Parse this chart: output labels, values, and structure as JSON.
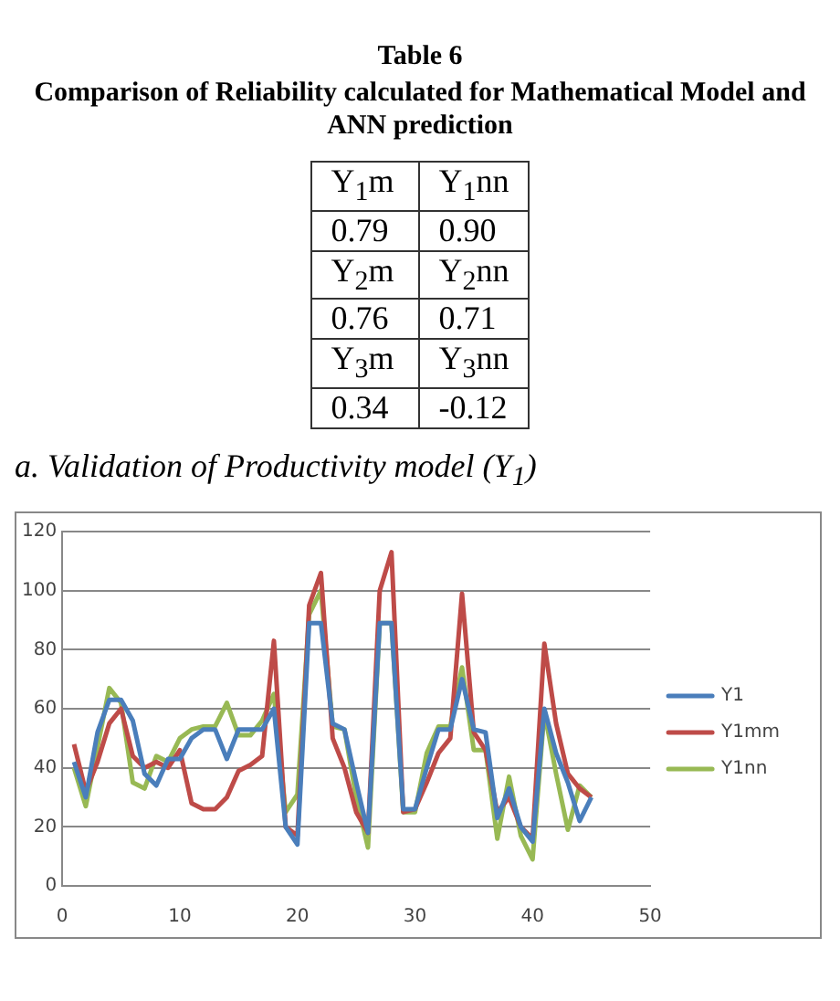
{
  "chart_data": {
    "type": "line",
    "title": "a. Validation of Productivity model (Y$_{1}$)",
    "annotations": [
      "Table 6",
      "Comparison of Reliability calculated for Mathematical Model and ANN prediction",
      "Y$_{1}$m",
      "Y$_{1}$nn",
      "0.79",
      "0.90",
      "Y$_{2}$m",
      "Y$_{2}$nn",
      "0.76",
      "0.71",
      "Y$_{3}$m",
      "Y$_{3}$nn",
      "0.34",
      "-0.12"
    ],
    "x": [
      1,
      2,
      3,
      4,
      5,
      6,
      7,
      8,
      9,
      10,
      11,
      12,
      13,
      14,
      15,
      16,
      17,
      18,
      19,
      20,
      21,
      22,
      23,
      24,
      25,
      26,
      27,
      28,
      29,
      30,
      31,
      32,
      33,
      34,
      35,
      36,
      37,
      38,
      39,
      40,
      41,
      42,
      43,
      44,
      45
    ],
    "series": [
      {
        "name": "Y1",
        "color": "#4a7ebb",
        "values": [
          42,
          30,
          52,
          63,
          63,
          56,
          38,
          34,
          43,
          43,
          50,
          53,
          53,
          43,
          53,
          53,
          53,
          60,
          20,
          14,
          89,
          89,
          55,
          53,
          35,
          18,
          89,
          89,
          26,
          26,
          40,
          53,
          53,
          70,
          53,
          52,
          23,
          33,
          20,
          15,
          60,
          45,
          35,
          22,
          30
        ]
      },
      {
        "name": "Y1mm",
        "color": "#be4b48",
        "values": [
          48,
          32,
          42,
          55,
          60,
          44,
          40,
          42,
          40,
          46,
          28,
          26,
          26,
          30,
          39,
          41,
          44,
          83,
          20,
          17,
          95,
          106,
          50,
          40,
          25,
          18,
          100,
          113,
          25,
          26,
          35,
          45,
          50,
          99,
          52,
          46,
          25,
          30,
          20,
          16,
          82,
          55,
          38,
          33,
          30
        ]
      },
      {
        "name": "Y1nn",
        "color": "#98b954",
        "values": [
          40,
          27,
          47,
          67,
          62,
          35,
          33,
          44,
          42,
          50,
          53,
          54,
          54,
          62,
          51,
          51,
          56,
          65,
          25,
          31,
          92,
          100,
          54,
          53,
          30,
          13,
          89,
          89,
          25,
          25,
          45,
          54,
          54,
          74,
          46,
          46,
          16,
          37,
          17,
          9,
          59,
          38,
          19,
          34,
          30
        ]
      }
    ],
    "xlim": [
      0,
      50
    ],
    "xticks": [
      0,
      10,
      20,
      30,
      40,
      50
    ],
    "ylim": [
      0,
      120
    ],
    "yticks": [
      0,
      20,
      40,
      60,
      80,
      100,
      120
    ],
    "grid": "y",
    "legend": "right",
    "marker": "none",
    "line_style": "solid"
  }
}
